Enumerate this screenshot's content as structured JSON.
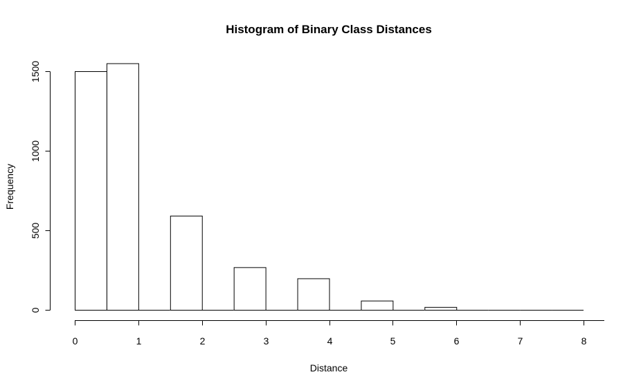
{
  "chart_data": {
    "type": "bar",
    "title": "Histogram of Binary Class Distances",
    "xlabel": "Distance",
    "ylabel": "Frequency",
    "xlim": [
      0,
      8
    ],
    "ylim": [
      0,
      1550
    ],
    "x_ticks": [
      0,
      1,
      2,
      3,
      4,
      5,
      6,
      7,
      8
    ],
    "y_ticks": [
      0,
      500,
      1000,
      1500
    ],
    "grid": false,
    "bins": [
      {
        "start": 0.0,
        "end": 0.5,
        "value": 1500
      },
      {
        "start": 0.5,
        "end": 1.0,
        "value": 1550
      },
      {
        "start": 1.0,
        "end": 1.5,
        "value": 0
      },
      {
        "start": 1.5,
        "end": 2.0,
        "value": 592
      },
      {
        "start": 2.0,
        "end": 2.5,
        "value": 0
      },
      {
        "start": 2.5,
        "end": 3.0,
        "value": 268
      },
      {
        "start": 3.0,
        "end": 3.5,
        "value": 0
      },
      {
        "start": 3.5,
        "end": 4.0,
        "value": 198
      },
      {
        "start": 4.0,
        "end": 4.5,
        "value": 0
      },
      {
        "start": 4.5,
        "end": 5.0,
        "value": 58
      },
      {
        "start": 5.0,
        "end": 5.5,
        "value": 0
      },
      {
        "start": 5.5,
        "end": 6.0,
        "value": 18
      },
      {
        "start": 6.0,
        "end": 6.5,
        "value": 0
      },
      {
        "start": 6.5,
        "end": 7.0,
        "value": 0
      },
      {
        "start": 7.0,
        "end": 7.5,
        "value": 0
      },
      {
        "start": 7.5,
        "end": 8.0,
        "value": 0
      }
    ]
  }
}
